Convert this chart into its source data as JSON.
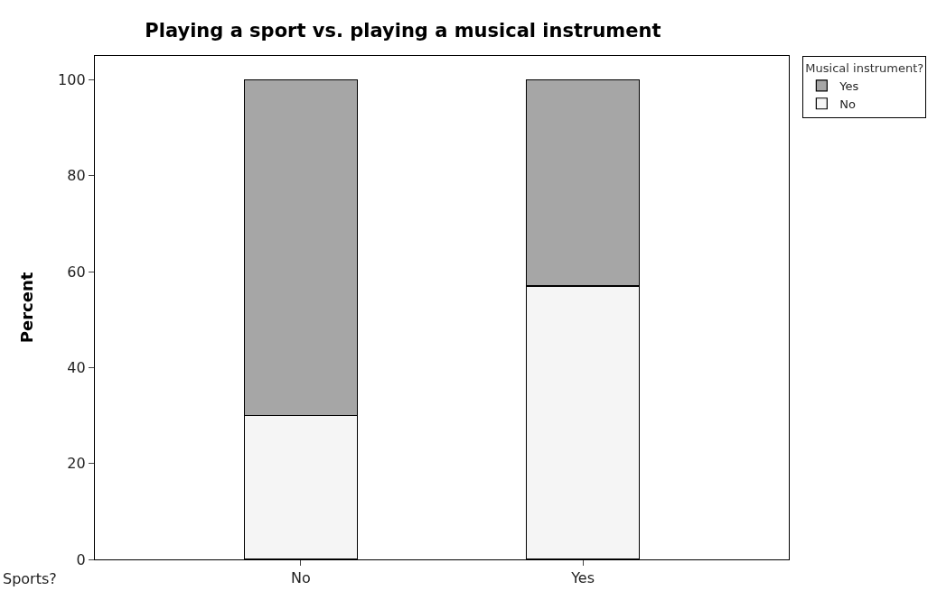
{
  "chart_data": {
    "type": "bar",
    "title": "Playing a sport vs. playing a musical instrument",
    "xlabel": "Sports?",
    "ylabel": "Percent",
    "legend_title": "Musical instrument?",
    "categories": [
      "No",
      "Yes"
    ],
    "stacked": true,
    "series": [
      {
        "name": "No",
        "color": "#f5f5f5",
        "values": [
          30,
          57
        ]
      },
      {
        "name": "Yes",
        "color": "#a6a6a6",
        "values": [
          70,
          43
        ]
      }
    ],
    "ylim": [
      0,
      105
    ],
    "yticks": [
      0,
      20,
      40,
      60,
      80,
      100
    ],
    "grid": false,
    "legend": "top right"
  }
}
